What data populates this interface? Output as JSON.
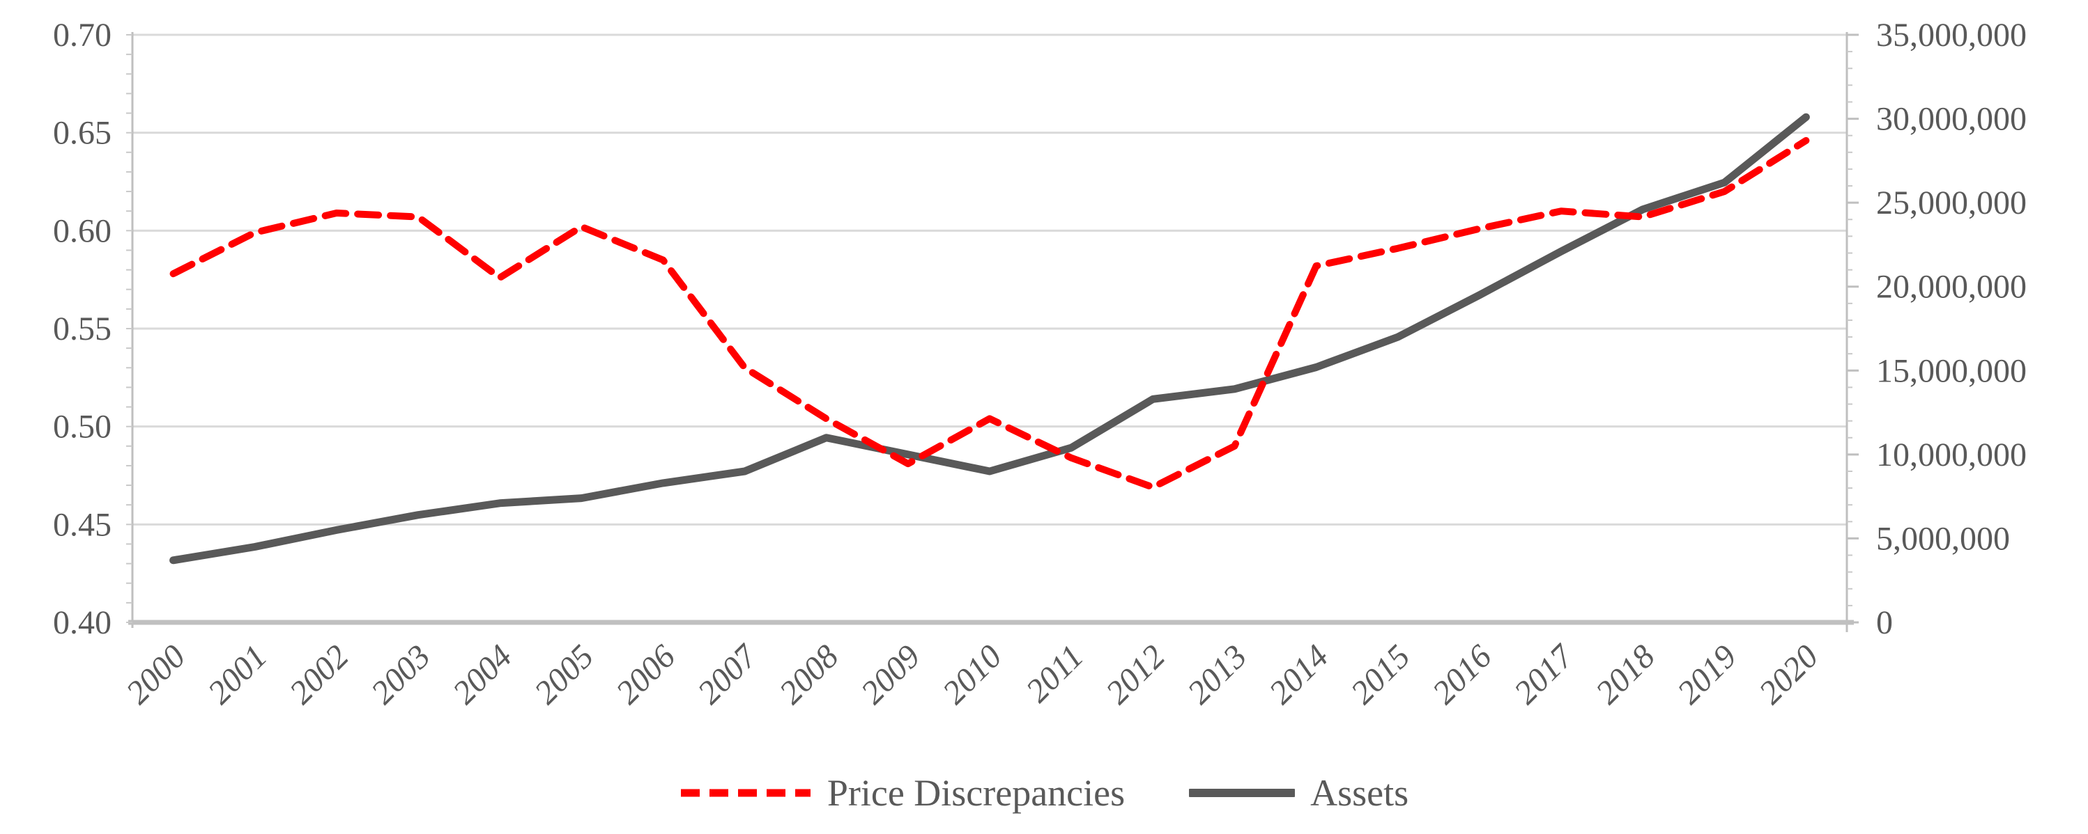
{
  "chart_data": {
    "type": "line",
    "title": "",
    "categories": [
      "2000",
      "2001",
      "2002",
      "2003",
      "2004",
      "2005",
      "2006",
      "2007",
      "2008",
      "2009",
      "2010",
      "2011",
      "2012",
      "2013",
      "2014",
      "2015",
      "2016",
      "2017",
      "2018",
      "2019",
      "2020"
    ],
    "series": [
      {
        "name": "Price Discrepancies",
        "axis": "left",
        "style": "dashed",
        "color": "#FF0000",
        "values": [
          0.578,
          0.599,
          0.609,
          0.607,
          0.576,
          0.602,
          0.585,
          0.53,
          0.504,
          0.481,
          0.504,
          0.484,
          0.469,
          0.49,
          0.582,
          0.591,
          0.601,
          0.61,
          0.607,
          0.62,
          0.646
        ]
      },
      {
        "name": "Assets",
        "axis": "right",
        "style": "solid",
        "color": "#595959",
        "values": [
          3700000,
          4500000,
          5500000,
          6400000,
          7100000,
          7400000,
          8300000,
          9000000,
          11000000,
          10000000,
          9000000,
          10400000,
          13300000,
          13900000,
          15200000,
          17000000,
          19500000,
          22100000,
          24600000,
          26200000,
          30100000
        ]
      }
    ],
    "left_axis": {
      "min": 0.4,
      "max": 0.7,
      "step": 0.05,
      "minor_step": 0.01,
      "tick_labels": [
        "0.40",
        "0.45",
        "0.50",
        "0.55",
        "0.60",
        "0.65",
        "0.70"
      ]
    },
    "right_axis": {
      "min": 0,
      "max": 35000000,
      "step": 5000000,
      "minor_step": 1000000,
      "tick_labels": [
        "0",
        "5,000,000",
        "10,000,000",
        "15,000,000",
        "20,000,000",
        "25,000,000",
        "30,000,000",
        "35,000,000"
      ]
    },
    "x_axis": {
      "label_rotation_deg": -45,
      "labels_italic": true
    },
    "grid": "horizontal",
    "legend_position": "bottom-center",
    "colors": {
      "gridline": "#DADADA",
      "axis_line": "#BFBFBF",
      "bottom_axis_line": "#C0C0C0",
      "tick": "#C9C9C9",
      "label_text": "#595959"
    }
  },
  "legend": {
    "items": [
      {
        "label": "Price Discrepancies"
      },
      {
        "label": "Assets"
      }
    ]
  }
}
